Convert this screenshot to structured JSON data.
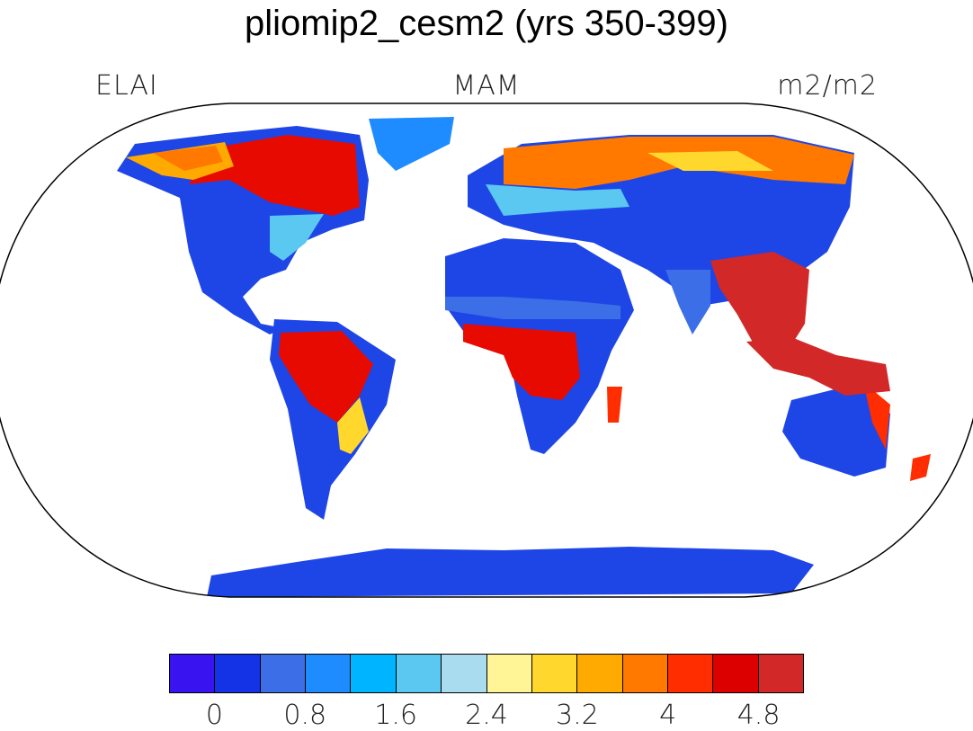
{
  "title": "pliomip2_cesm2 (yrs 350-399)",
  "subtitle_left": "ELAI",
  "subtitle_center": "MAM",
  "subtitle_right": "m2/m2",
  "colorbar": {
    "colors": [
      "#3A14F0",
      "#1432E6",
      "#3C6EE8",
      "#1E8CFF",
      "#00B4FF",
      "#5AC8F0",
      "#AADCF0",
      "#FFF596",
      "#FFD72D",
      "#FFAA00",
      "#FF7800",
      "#FF2D00",
      "#DC0000",
      "#D22828"
    ],
    "tick_labels": [
      "0",
      "0.8",
      "1.6",
      "2.4",
      "3.2",
      "4",
      "4.8"
    ],
    "tick_positions": [
      1,
      3,
      5,
      7,
      9,
      11,
      13
    ]
  },
  "legend_colors": {
    "water": "#ffffff",
    "coast": "#000000"
  }
}
